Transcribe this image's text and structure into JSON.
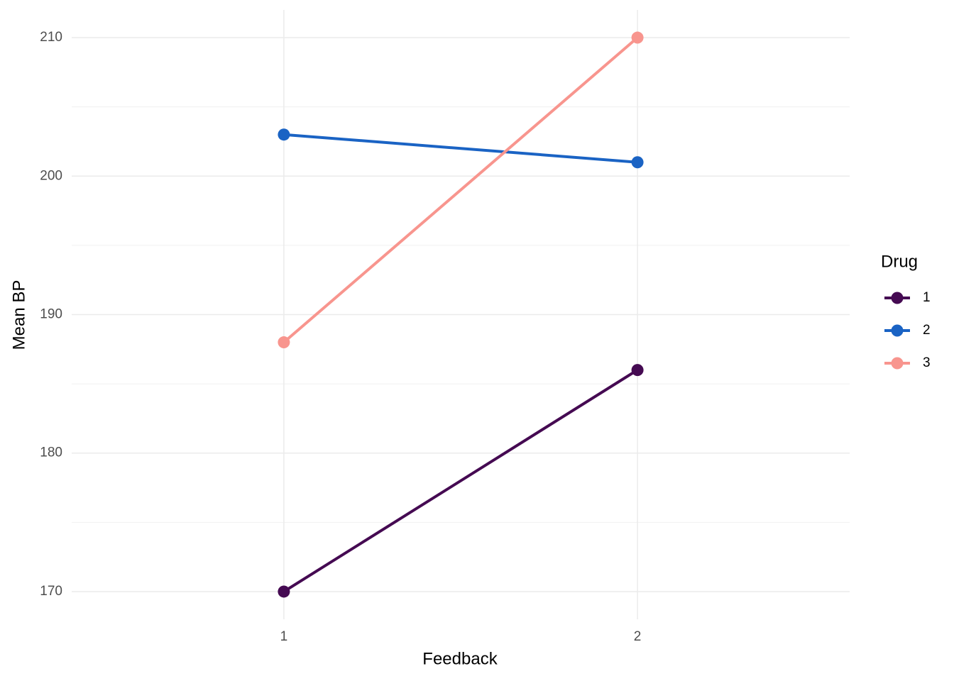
{
  "chart_data": {
    "type": "line",
    "x_label": "Feedback",
    "y_label": "Mean BP",
    "legend_title": "Drug",
    "categories": [
      "1",
      "2"
    ],
    "series": [
      {
        "name": "1",
        "color": "#450a52",
        "values": [
          170,
          186
        ]
      },
      {
        "name": "2",
        "color": "#1a63c4",
        "values": [
          203,
          201
        ]
      },
      {
        "name": "3",
        "color": "#f8958e",
        "values": [
          188,
          210
        ]
      }
    ],
    "ylim": [
      168,
      212
    ],
    "yticks": [
      170,
      180,
      190,
      200,
      210
    ],
    "grid": true,
    "legend": "right"
  }
}
